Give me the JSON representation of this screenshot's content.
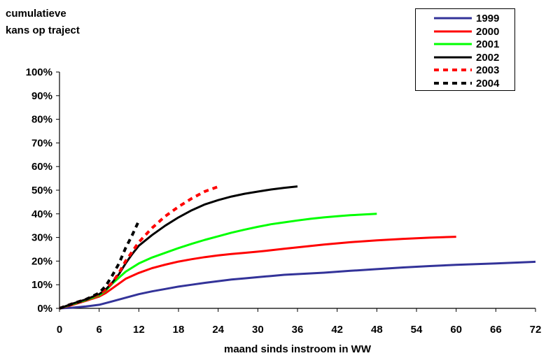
{
  "chart_data": {
    "type": "line",
    "ylabel_lines": [
      "cumulatieve",
      "kans op traject"
    ],
    "xlabel": "maand sinds instroom in WW",
    "xlim": [
      0,
      72
    ],
    "ylim": [
      0,
      100
    ],
    "xticks": [
      0,
      6,
      12,
      18,
      24,
      30,
      36,
      42,
      48,
      54,
      60,
      66,
      72
    ],
    "yticks": [
      "0%",
      "10%",
      "20%",
      "30%",
      "40%",
      "50%",
      "60%",
      "70%",
      "80%",
      "90%",
      "100%"
    ],
    "grid": false,
    "legend_position": "top-right",
    "series": [
      {
        "name": "1999",
        "color": "#333399",
        "dashed": false,
        "x": [
          0,
          2,
          4,
          6,
          8,
          10,
          12,
          14,
          16,
          18,
          20,
          22,
          24,
          26,
          28,
          30,
          32,
          34,
          36,
          40,
          44,
          48,
          52,
          56,
          60,
          66,
          72
        ],
        "y": [
          0,
          0.3,
          0.8,
          1.5,
          3,
          4.5,
          6,
          7.2,
          8.2,
          9.2,
          10,
          10.8,
          11.5,
          12.2,
          12.7,
          13.2,
          13.7,
          14.2,
          14.5,
          15.1,
          15.9,
          16.6,
          17.3,
          17.9,
          18.4,
          19.0,
          19.7
        ]
      },
      {
        "name": "2000",
        "color": "#ff0000",
        "dashed": false,
        "x": [
          0,
          2,
          4,
          6,
          7,
          8,
          10,
          12,
          14,
          16,
          18,
          20,
          22,
          24,
          26,
          28,
          30,
          32,
          34,
          36,
          38,
          40,
          44,
          48,
          52,
          56,
          60
        ],
        "y": [
          0,
          1.5,
          3.2,
          5,
          6.5,
          8.5,
          12.5,
          15,
          17,
          18.5,
          19.8,
          20.8,
          21.7,
          22.4,
          23.0,
          23.5,
          24.0,
          24.6,
          25.2,
          25.8,
          26.4,
          27.0,
          28.0,
          28.8,
          29.4,
          29.9,
          30.3
        ]
      },
      {
        "name": "2001",
        "color": "#00ff00",
        "dashed": false,
        "x": [
          0,
          2,
          4,
          6,
          7,
          8,
          10,
          12,
          14,
          16,
          18,
          20,
          22,
          24,
          26,
          28,
          30,
          32,
          34,
          36,
          38,
          40,
          42,
          44,
          46,
          48
        ],
        "y": [
          0,
          1.8,
          3.5,
          5.5,
          7.5,
          10.5,
          15.5,
          19,
          21.5,
          23.5,
          25.5,
          27.3,
          29,
          30.5,
          32,
          33.3,
          34.5,
          35.6,
          36.4,
          37.2,
          37.9,
          38.5,
          39.0,
          39.4,
          39.7,
          40.0
        ]
      },
      {
        "name": "2002",
        "color": "#000000",
        "dashed": false,
        "x": [
          0,
          2,
          4,
          6,
          7,
          8,
          9,
          10,
          11,
          12,
          14,
          16,
          18,
          20,
          22,
          24,
          26,
          28,
          30,
          32,
          34,
          36
        ],
        "y": [
          0,
          2,
          3.8,
          6,
          8,
          11,
          14.5,
          19,
          23,
          26.5,
          31,
          35,
          38.5,
          41.5,
          44,
          45.8,
          47.3,
          48.5,
          49.4,
          50.3,
          51.0,
          51.6
        ]
      },
      {
        "name": "2003",
        "color": "#ff0000",
        "dashed": true,
        "x": [
          0,
          2,
          4,
          6,
          7,
          8,
          9,
          10,
          11,
          12,
          13,
          14,
          16,
          18,
          20,
          22,
          24
        ],
        "y": [
          0,
          2,
          3.8,
          6,
          8,
          11,
          15,
          20,
          24,
          28,
          31,
          34,
          39,
          43,
          46.5,
          49.5,
          51.5
        ]
      },
      {
        "name": "2004",
        "color": "#000000",
        "dashed": true,
        "x": [
          0,
          2,
          4,
          6,
          7,
          8,
          9,
          10,
          11,
          12
        ],
        "y": [
          0,
          2,
          3.8,
          6.5,
          9.5,
          14,
          19,
          25.5,
          31,
          37
        ]
      }
    ]
  }
}
